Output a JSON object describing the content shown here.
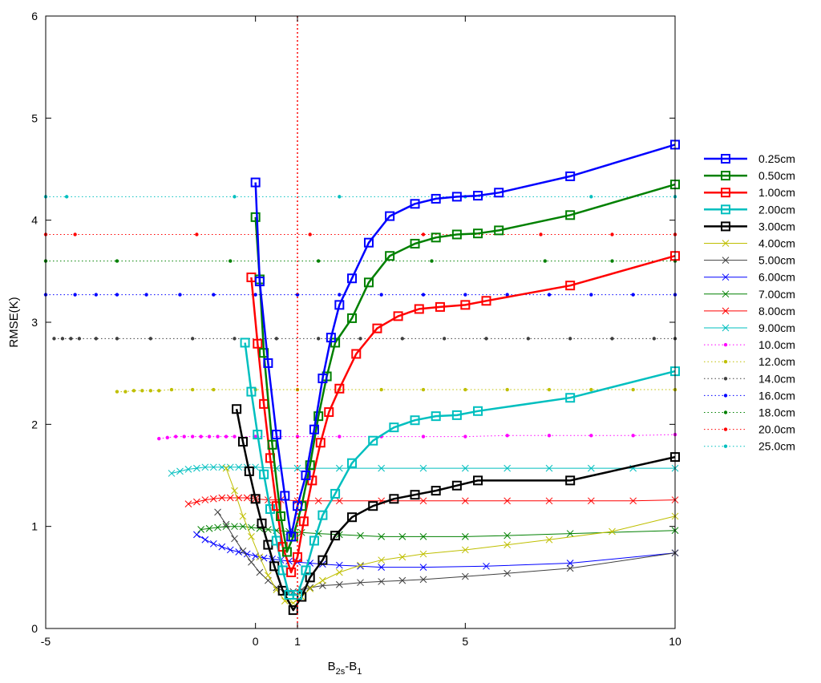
{
  "chart_data": {
    "type": "line",
    "title": "",
    "xlabel": "B",
    "xlabel_sub1": "2s",
    "xlabel_mid": "-B",
    "xlabel_sub2": "1",
    "ylabel": "RMSE(K)",
    "xlim": [
      -5,
      10
    ],
    "ylim": [
      0,
      6
    ],
    "xticks": [
      "-5",
      "0",
      "1",
      "5",
      "10"
    ],
    "xtick_values": [
      -5,
      0,
      1,
      5,
      10
    ],
    "yticks": [
      "0",
      "1",
      "2",
      "3",
      "4",
      "5",
      "6"
    ],
    "ytick_values": [
      0,
      1,
      2,
      3,
      4,
      5,
      6
    ],
    "grid": false,
    "reference_line_x": 1,
    "legend_position": "outside-right",
    "series": [
      {
        "name": "0.25cm",
        "color": "#0000ff",
        "style": "thick-square",
        "x": [
          0,
          0.1,
          0.3,
          0.5,
          0.7,
          0.85,
          1.0,
          1.2,
          1.4,
          1.6,
          1.8,
          2.0,
          2.3,
          2.7,
          3.2,
          3.8,
          4.3,
          4.8,
          5.3,
          5.8,
          7.5,
          10
        ],
        "y": [
          4.37,
          3.4,
          2.6,
          1.9,
          1.3,
          0.9,
          1.2,
          1.5,
          1.95,
          2.45,
          2.85,
          3.17,
          3.43,
          3.78,
          4.04,
          4.16,
          4.21,
          4.23,
          4.24,
          4.27,
          4.43,
          4.74
        ]
      },
      {
        "name": "0.50cm",
        "color": "#008000",
        "style": "thick-square",
        "x": [
          0,
          0.1,
          0.2,
          0.4,
          0.6,
          0.75,
          0.9,
          1.1,
          1.3,
          1.5,
          1.7,
          1.9,
          2.3,
          2.7,
          3.2,
          3.8,
          4.3,
          4.8,
          5.3,
          5.8,
          7.5,
          10
        ],
        "y": [
          4.03,
          3.42,
          2.7,
          1.8,
          1.1,
          0.75,
          0.9,
          1.2,
          1.6,
          2.08,
          2.47,
          2.8,
          3.04,
          3.39,
          3.65,
          3.77,
          3.83,
          3.86,
          3.87,
          3.9,
          4.05,
          4.35
        ]
      },
      {
        "name": "1.00cm",
        "color": "#ff0000",
        "style": "thick-square",
        "x": [
          -0.1,
          0.05,
          0.2,
          0.35,
          0.5,
          0.65,
          0.85,
          1.0,
          1.15,
          1.35,
          1.55,
          1.75,
          2.0,
          2.4,
          2.9,
          3.4,
          3.9,
          4.4,
          5.0,
          5.5,
          7.5,
          10
        ],
        "y": [
          3.44,
          2.79,
          2.2,
          1.67,
          1.2,
          0.8,
          0.55,
          0.7,
          1.05,
          1.45,
          1.82,
          2.12,
          2.35,
          2.69,
          2.94,
          3.06,
          3.13,
          3.15,
          3.17,
          3.21,
          3.36,
          3.65
        ]
      },
      {
        "name": "2.00cm",
        "color": "#00bfbf",
        "style": "thick-square",
        "x": [
          -0.25,
          -0.1,
          0.05,
          0.2,
          0.35,
          0.5,
          0.65,
          0.8,
          1.0,
          1.2,
          1.4,
          1.6,
          1.9,
          2.3,
          2.8,
          3.3,
          3.8,
          4.3,
          4.8,
          5.3,
          7.5,
          10
        ],
        "y": [
          2.8,
          2.32,
          1.9,
          1.51,
          1.17,
          0.86,
          0.57,
          0.33,
          0.33,
          0.57,
          0.86,
          1.11,
          1.32,
          1.62,
          1.84,
          1.97,
          2.04,
          2.08,
          2.09,
          2.13,
          2.26,
          2.52
        ]
      },
      {
        "name": "3.00cm",
        "color": "#000000",
        "style": "thick-square",
        "x": [
          -0.45,
          -0.3,
          -0.15,
          0.0,
          0.15,
          0.3,
          0.45,
          0.65,
          0.9,
          1.1,
          1.3,
          1.6,
          1.9,
          2.3,
          2.8,
          3.3,
          3.8,
          4.3,
          4.8,
          5.3,
          7.5,
          10
        ],
        "y": [
          2.15,
          1.83,
          1.54,
          1.27,
          1.03,
          0.82,
          0.61,
          0.37,
          0.18,
          0.31,
          0.5,
          0.67,
          0.91,
          1.09,
          1.2,
          1.27,
          1.31,
          1.35,
          1.4,
          1.45,
          1.45,
          1.68
        ]
      },
      {
        "name": "4.00cm",
        "color": "#bfbf00",
        "style": "thin-x",
        "x": [
          -0.7,
          -0.5,
          -0.3,
          -0.1,
          0.1,
          0.3,
          0.5,
          0.7,
          0.9,
          1.1,
          1.3,
          1.6,
          2.0,
          2.5,
          3.0,
          3.5,
          4.0,
          5.0,
          6.0,
          7.0,
          8.5,
          10
        ],
        "y": [
          1.57,
          1.35,
          1.1,
          0.9,
          0.7,
          0.52,
          0.38,
          0.27,
          0.25,
          0.31,
          0.39,
          0.47,
          0.55,
          0.62,
          0.67,
          0.7,
          0.73,
          0.77,
          0.82,
          0.87,
          0.95,
          1.1
        ]
      },
      {
        "name": "5.00cm",
        "color": "#404040",
        "style": "thin-x",
        "x": [
          -0.9,
          -0.7,
          -0.5,
          -0.3,
          -0.1,
          0.1,
          0.3,
          0.5,
          0.7,
          0.9,
          1.1,
          1.3,
          1.6,
          2.0,
          2.5,
          3.0,
          3.5,
          4.0,
          5.0,
          6.0,
          7.5,
          10
        ],
        "y": [
          1.14,
          1.02,
          0.88,
          0.76,
          0.65,
          0.55,
          0.47,
          0.4,
          0.36,
          0.36,
          0.38,
          0.4,
          0.42,
          0.43,
          0.45,
          0.46,
          0.47,
          0.48,
          0.51,
          0.54,
          0.59,
          0.74
        ]
      },
      {
        "name": "6.00cm",
        "color": "#0000ff",
        "style": "thin-x",
        "x": [
          -1.4,
          -1.2,
          -1.0,
          -0.8,
          -0.6,
          -0.4,
          -0.2,
          0.0,
          0.2,
          0.4,
          0.6,
          0.8,
          1.0,
          1.3,
          1.6,
          2.0,
          2.5,
          3.0,
          4.0,
          5.5,
          7.5,
          10
        ],
        "y": [
          0.92,
          0.87,
          0.83,
          0.8,
          0.77,
          0.75,
          0.73,
          0.71,
          0.69,
          0.68,
          0.67,
          0.66,
          0.65,
          0.64,
          0.63,
          0.62,
          0.61,
          0.6,
          0.6,
          0.61,
          0.64,
          0.74
        ]
      },
      {
        "name": "7.00cm",
        "color": "#008000",
        "style": "thin-x",
        "x": [
          -1.3,
          -1.1,
          -0.9,
          -0.7,
          -0.5,
          -0.3,
          -0.1,
          0.1,
          0.3,
          0.5,
          0.8,
          1.1,
          1.5,
          2.0,
          2.5,
          3.0,
          3.5,
          4.0,
          5.0,
          6.0,
          7.5,
          10
        ],
        "y": [
          0.97,
          0.98,
          0.99,
          1.0,
          1.0,
          1.0,
          0.99,
          0.98,
          0.97,
          0.96,
          0.95,
          0.94,
          0.93,
          0.92,
          0.91,
          0.9,
          0.9,
          0.9,
          0.9,
          0.91,
          0.93,
          0.96
        ]
      },
      {
        "name": "8.00cm",
        "color": "#ff0000",
        "style": "thin-x",
        "x": [
          -1.6,
          -1.4,
          -1.2,
          -1.0,
          -0.8,
          -0.6,
          -0.4,
          -0.2,
          0.0,
          0.3,
          0.6,
          1.0,
          1.5,
          2.0,
          3.0,
          4.0,
          5.0,
          6.0,
          7.0,
          8.0,
          9.0,
          10
        ],
        "y": [
          1.22,
          1.24,
          1.26,
          1.27,
          1.28,
          1.28,
          1.28,
          1.28,
          1.27,
          1.26,
          1.26,
          1.25,
          1.25,
          1.25,
          1.25,
          1.25,
          1.25,
          1.25,
          1.25,
          1.25,
          1.25,
          1.26
        ]
      },
      {
        "name": "9.00cm",
        "color": "#00bfbf",
        "style": "thin-x",
        "x": [
          -2.0,
          -1.8,
          -1.6,
          -1.4,
          -1.2,
          -1.0,
          -0.8,
          -0.6,
          -0.4,
          -0.2,
          0.0,
          0.5,
          1.0,
          2.0,
          3.0,
          4.0,
          5.0,
          6.0,
          7.0,
          8.0,
          9.0,
          10
        ],
        "y": [
          1.52,
          1.54,
          1.56,
          1.57,
          1.58,
          1.58,
          1.58,
          1.58,
          1.58,
          1.58,
          1.58,
          1.57,
          1.57,
          1.57,
          1.57,
          1.57,
          1.57,
          1.57,
          1.57,
          1.57,
          1.57,
          1.57
        ]
      },
      {
        "name": "10.0cm",
        "color": "#ff00ff",
        "style": "dotted-dot",
        "x": [
          -2.3,
          -2.1,
          -1.9,
          -1.7,
          -1.5,
          -1.3,
          -1.1,
          -0.9,
          -0.7,
          -0.5,
          0.0,
          1.0,
          2.0,
          3.0,
          4.0,
          5.0,
          6.0,
          7.0,
          8.0,
          9.0,
          10
        ],
        "y": [
          1.86,
          1.87,
          1.88,
          1.88,
          1.88,
          1.88,
          1.88,
          1.88,
          1.88,
          1.88,
          1.88,
          1.88,
          1.88,
          1.88,
          1.88,
          1.88,
          1.89,
          1.89,
          1.89,
          1.89,
          1.9
        ]
      },
      {
        "name": "12.0cm",
        "color": "#bfbf00",
        "style": "dotted-dot",
        "x": [
          -3.3,
          -3.1,
          -2.9,
          -2.7,
          -2.5,
          -2.3,
          -2.0,
          -1.5,
          -1.0,
          0.0,
          1.0,
          2.0,
          3.0,
          4.0,
          5.0,
          6.0,
          7.0,
          8.0,
          9.0,
          10
        ],
        "y": [
          2.32,
          2.32,
          2.33,
          2.33,
          2.33,
          2.33,
          2.34,
          2.34,
          2.34,
          2.34,
          2.34,
          2.34,
          2.34,
          2.34,
          2.34,
          2.34,
          2.34,
          2.34,
          2.34,
          2.34
        ]
      },
      {
        "name": "14.0cm",
        "color": "#404040",
        "style": "dotted-dot",
        "x": [
          -4.8,
          -4.6,
          -4.4,
          -4.2,
          -3.8,
          -3.3,
          -2.5,
          -1.5,
          -0.5,
          0.5,
          1.5,
          2.5,
          3.5,
          4.5,
          5.5,
          6.5,
          7.5,
          8.5,
          9.5,
          10
        ],
        "y": [
          2.84,
          2.84,
          2.84,
          2.84,
          2.84,
          2.84,
          2.84,
          2.84,
          2.84,
          2.84,
          2.84,
          2.84,
          2.84,
          2.84,
          2.84,
          2.84,
          2.84,
          2.84,
          2.84,
          2.84
        ]
      },
      {
        "name": "16.0cm",
        "color": "#0000ff",
        "style": "dotted-dot",
        "x": [
          -5,
          -4.3,
          -3.8,
          -3.3,
          -2.6,
          -1.8,
          -1.0,
          0.0,
          1.0,
          2.0,
          3.0,
          4.0,
          5.0,
          6.0,
          7.0,
          8.0,
          9.0,
          10
        ],
        "y": [
          3.27,
          3.27,
          3.27,
          3.27,
          3.27,
          3.27,
          3.27,
          3.27,
          3.27,
          3.27,
          3.27,
          3.27,
          3.27,
          3.27,
          3.27,
          3.27,
          3.27,
          3.27
        ]
      },
      {
        "name": "18.0cm",
        "color": "#008000",
        "style": "dotted-dot",
        "x": [
          -5,
          -3.3,
          -0.6,
          1.5,
          4.2,
          6.9,
          8.5,
          10
        ],
        "y": [
          3.6,
          3.6,
          3.6,
          3.6,
          3.6,
          3.6,
          3.6,
          3.6
        ]
      },
      {
        "name": "20.0cm",
        "color": "#ff0000",
        "style": "dotted-dot",
        "x": [
          -5,
          -4.3,
          -1.4,
          1.3,
          4.0,
          6.8,
          8.5,
          10
        ],
        "y": [
          3.86,
          3.86,
          3.86,
          3.86,
          3.86,
          3.86,
          3.86,
          3.86
        ]
      },
      {
        "name": "25.0cm",
        "color": "#00bfbf",
        "style": "dotted-dot",
        "x": [
          -5,
          -4.5,
          -0.5,
          2.0,
          5.0,
          8.0,
          10
        ],
        "y": [
          4.23,
          4.23,
          4.23,
          4.23,
          4.23,
          4.23,
          4.23
        ]
      }
    ]
  }
}
